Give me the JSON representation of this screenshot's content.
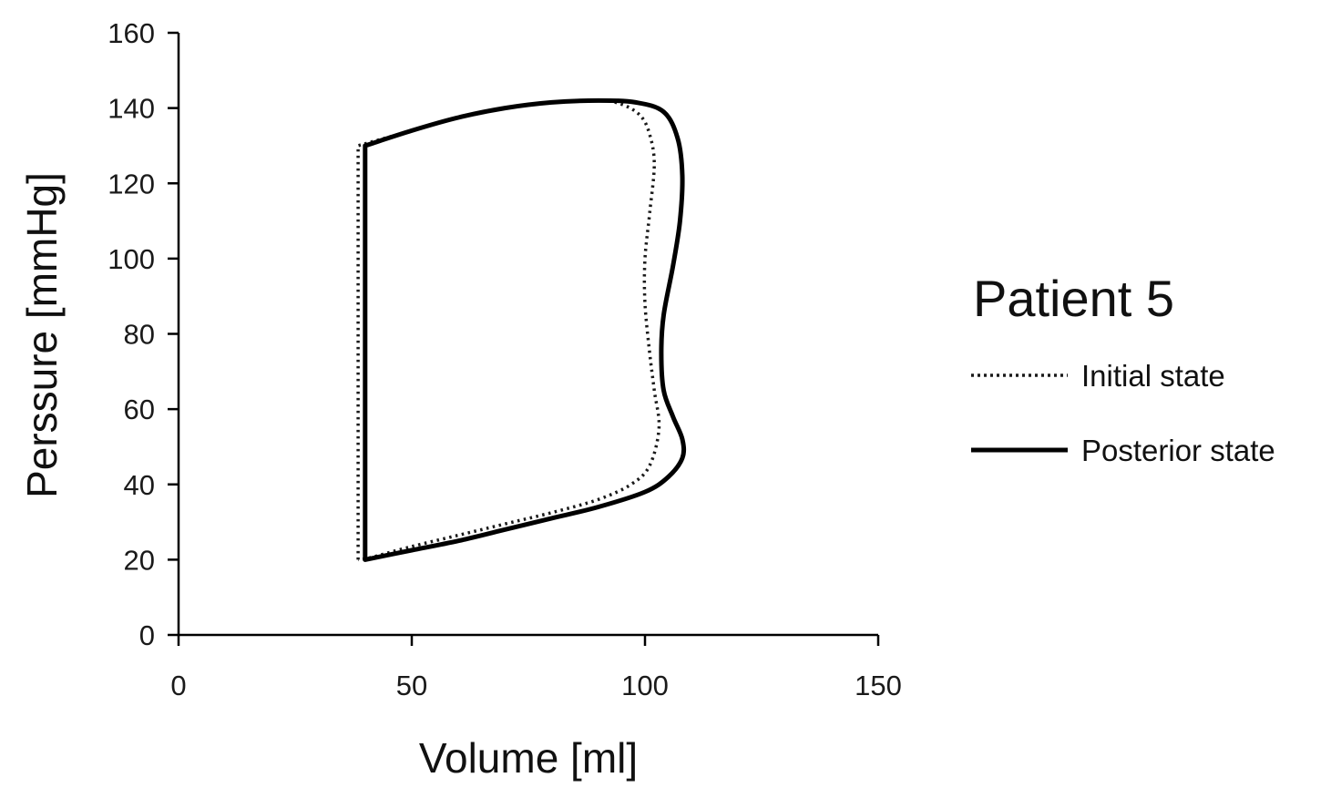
{
  "chart_data": {
    "type": "line",
    "xlabel": "Volume [ml]",
    "ylabel": "Perssure [mmHg]",
    "xlim": [
      0,
      150
    ],
    "ylim": [
      0,
      160
    ],
    "xticks": [
      "0",
      "50",
      "100",
      "150"
    ],
    "yticks": [
      "0",
      "20",
      "40",
      "60",
      "80",
      "100",
      "120",
      "140",
      "160"
    ],
    "grid": false,
    "legend": {
      "title": "Patient 5",
      "placement": "right",
      "entries": [
        {
          "name": "Initial state",
          "style": "dotted"
        },
        {
          "name": "Posterior state",
          "style": "solid"
        }
      ]
    },
    "series": [
      {
        "name": "Initial state",
        "style": "dotted",
        "color": "#1a1a1a",
        "x": [
          38.5,
          38.5,
          50,
          60,
          70,
          80,
          90,
          95,
          99,
          101,
          102,
          101,
          100,
          100,
          101,
          102,
          103,
          101,
          97,
          90,
          80,
          70,
          60,
          50,
          41,
          38.5
        ],
        "y": [
          20,
          130,
          134,
          137.5,
          140,
          141.5,
          142,
          141,
          138,
          133,
          125,
          112,
          100,
          88,
          75,
          65,
          55,
          45,
          40,
          36,
          32.5,
          29.5,
          26.5,
          23.5,
          20.5,
          20
        ]
      },
      {
        "name": "Posterior state",
        "style": "solid",
        "color": "#000000",
        "x": [
          40,
          40,
          50,
          60,
          70,
          80,
          90,
          98,
          104,
          107,
          108,
          107.5,
          106,
          104,
          103.5,
          104,
          106,
          108,
          108,
          105,
          100,
          90,
          80,
          70,
          60,
          50,
          40
        ],
        "y": [
          20,
          130,
          134,
          137.5,
          140,
          141.5,
          142,
          141.5,
          139,
          132,
          122,
          110,
          98,
          85,
          75,
          65,
          58,
          52,
          47,
          42,
          38,
          34,
          31,
          28,
          25,
          22.5,
          20
        ]
      }
    ]
  }
}
